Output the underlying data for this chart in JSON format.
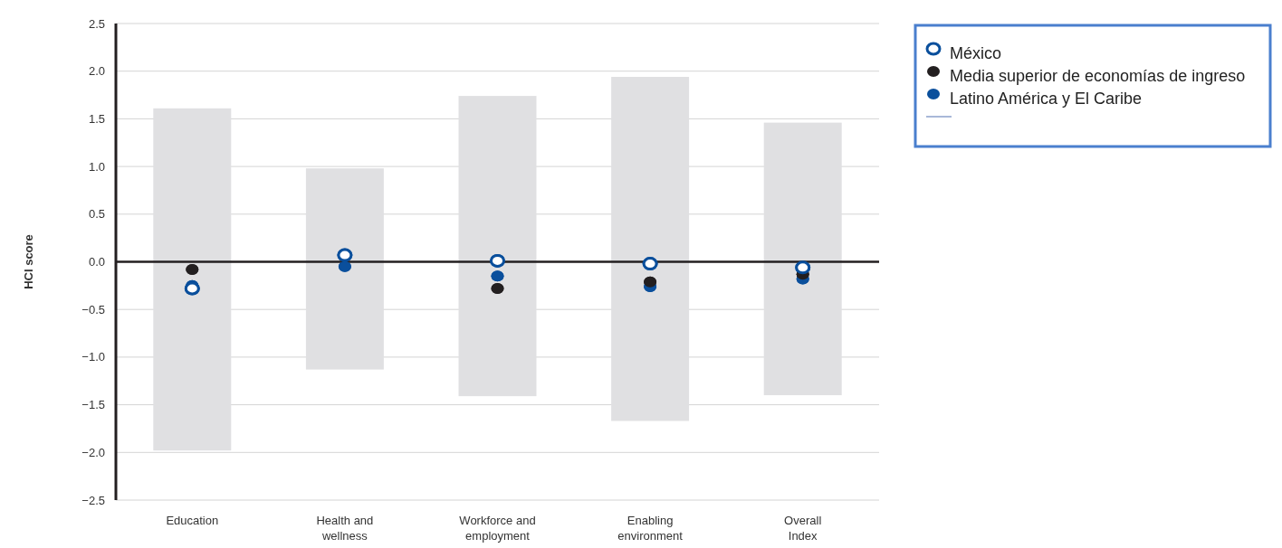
{
  "chart_data": {
    "type": "bar",
    "ylabel": "HCI score",
    "categories": [
      "Education",
      "Health and\nwellness",
      "Workforce and\nemployment",
      "Enabling\nenvironment",
      "Overall\nIndex"
    ],
    "series": [
      {
        "color": "#e0e0e2",
        "base": [
          -1.98,
          -1.13,
          -1.41,
          -1.67,
          -1.4
        ],
        "values": [
          3.59,
          2.11,
          3.15,
          3.61,
          2.86
        ]
      },
      {
        "type": "scatter",
        "name": "México",
        "color": "#0a4f9c",
        "values": [
          -0.28,
          0.07,
          0.01,
          -0.02,
          -0.06
        ]
      },
      {
        "type": "scatter",
        "name": "Media superior de economías de ingreso",
        "color": "#231f20",
        "values": [
          -0.08,
          null,
          -0.28,
          -0.21,
          -0.13
        ]
      },
      {
        "type": "scatter",
        "name": "Latino América y El Caribe",
        "color": "#0a4f9c",
        "values": [
          -0.25,
          -0.05,
          -0.15,
          -0.26,
          -0.18
        ]
      }
    ],
    "ylim": [
      -2.5,
      2.5
    ],
    "yticks": [
      {
        "value": 2.5,
        "label": "2.5"
      },
      {
        "value": 2,
        "label": "2.0"
      },
      {
        "value": 1.5,
        "label": "1.5"
      },
      {
        "value": 1,
        "label": "1.0"
      },
      {
        "value": 0.5,
        "label": "0.5"
      },
      {
        "value": 0,
        "label": "0.0"
      },
      {
        "value": -0.5,
        "label": "−0.5"
      },
      {
        "value": -1,
        "label": "−1.0"
      },
      {
        "value": -1.5,
        "label": "−1.5"
      },
      {
        "value": -2,
        "label": "−2.0"
      },
      {
        "value": -2.5,
        "label": "−2.5"
      }
    ],
    "ref_lines": [
      {
        "axis": "y",
        "value": 0,
        "color": "#231f20"
      }
    ],
    "grid": "y",
    "legend": "top right",
    "marker": "circle"
  }
}
